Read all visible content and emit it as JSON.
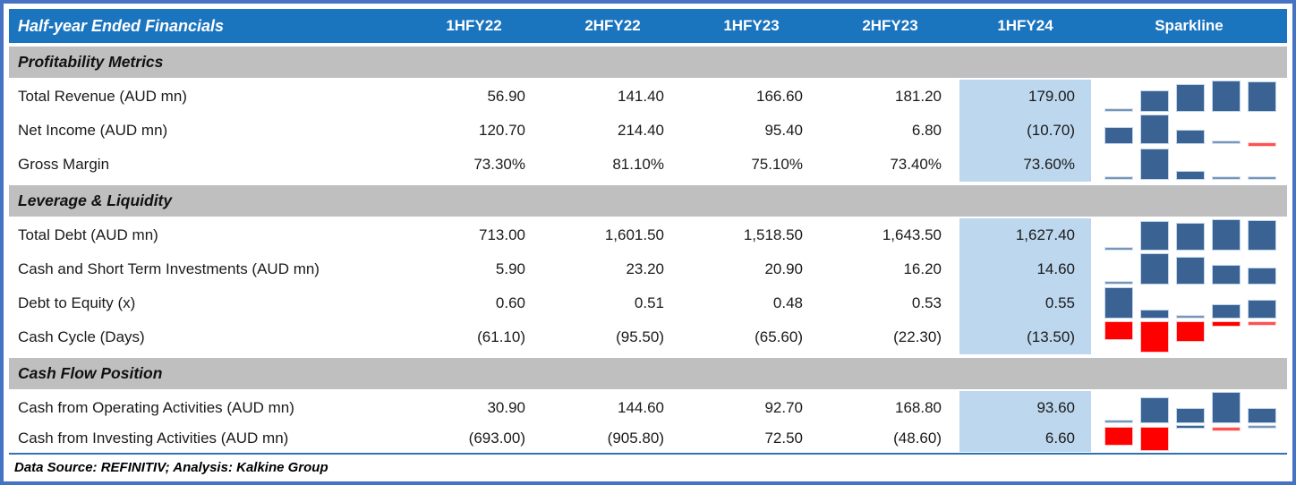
{
  "table": {
    "title": "Half-year Ended Financials",
    "columns": [
      "1HFY22",
      "2HFY22",
      "1HFY23",
      "2HFY23",
      "1HFY24"
    ],
    "sparkline_header": "Sparkline",
    "sections": [
      {
        "name": "Profitability Metrics",
        "rows": [
          {
            "label": "Total Revenue (AUD mn)",
            "values": [
              "56.90",
              "141.40",
              "166.60",
              "181.20",
              "179.00"
            ],
            "numeric": [
              56.9,
              141.4,
              166.6,
              181.2,
              179.0
            ]
          },
          {
            "label": "Net Income (AUD mn)",
            "values": [
              "120.70",
              "214.40",
              "95.40",
              "6.80",
              "(10.70)"
            ],
            "numeric": [
              120.7,
              214.4,
              95.4,
              6.8,
              -10.7
            ]
          },
          {
            "label": "Gross Margin",
            "values": [
              "73.30%",
              "81.10%",
              "75.10%",
              "73.40%",
              "73.60%"
            ],
            "numeric": [
              73.3,
              81.1,
              75.1,
              73.4,
              73.6
            ]
          }
        ]
      },
      {
        "name": "Leverage & Liquidity",
        "rows": [
          {
            "label": "Total Debt (AUD mn)",
            "values": [
              "713.00",
              "1,601.50",
              "1,518.50",
              "1,643.50",
              "1,627.40"
            ],
            "numeric": [
              713.0,
              1601.5,
              1518.5,
              1643.5,
              1627.4
            ]
          },
          {
            "label": "Cash and Short Term Investments (AUD mn)",
            "values": [
              "5.90",
              "23.20",
              "20.90",
              "16.20",
              "14.60"
            ],
            "numeric": [
              5.9,
              23.2,
              20.9,
              16.2,
              14.6
            ]
          },
          {
            "label": "Debt to Equity (x)",
            "values": [
              "0.60",
              "0.51",
              "0.48",
              "0.53",
              "0.55"
            ],
            "numeric": [
              0.6,
              0.51,
              0.48,
              0.53,
              0.55
            ]
          },
          {
            "label": "Cash Cycle (Days)",
            "values": [
              "(61.10)",
              "(95.50)",
              "(65.60)",
              "(22.30)",
              "(13.50)"
            ],
            "numeric": [
              -61.1,
              -95.5,
              -65.6,
              -22.3,
              -13.5
            ]
          }
        ]
      },
      {
        "name": "Cash Flow Position",
        "rows": [
          {
            "label": "Cash from Operating Activities (AUD mn)",
            "values": [
              "30.90",
              "144.60",
              "92.70",
              "168.80",
              "93.60"
            ],
            "numeric": [
              30.9,
              144.6,
              92.7,
              168.8,
              93.6
            ]
          },
          {
            "label": "Cash from Investing Activities (AUD mn)",
            "values": [
              "(693.00)",
              "(905.80)",
              "72.50",
              "(48.60)",
              "6.60"
            ],
            "numeric": [
              -693.0,
              -905.8,
              72.5,
              -48.6,
              6.6
            ]
          }
        ]
      }
    ],
    "footer": "Data Source: REFINITIV; Analysis: Kalkine Group"
  },
  "colors": {
    "frame": "#4472C4",
    "header_bg": "#1B74BE",
    "section_bg": "#BFBFBF",
    "highlight_col_bg": "#BDD7EE",
    "spark_pos": "#3A6292",
    "spark_neg": "#FF0000",
    "divider": "#2E75B6"
  },
  "chart_data": {
    "type": "table",
    "title": "Half-year Ended Financials",
    "categories": [
      "1HFY22",
      "2HFY22",
      "1HFY23",
      "2HFY23",
      "1HFY24"
    ],
    "series": [
      {
        "name": "Total Revenue (AUD mn)",
        "values": [
          56.9,
          141.4,
          166.6,
          181.2,
          179.0
        ]
      },
      {
        "name": "Net Income (AUD mn)",
        "values": [
          120.7,
          214.4,
          95.4,
          6.8,
          -10.7
        ]
      },
      {
        "name": "Gross Margin (%)",
        "values": [
          73.3,
          81.1,
          75.1,
          73.4,
          73.6
        ]
      },
      {
        "name": "Total Debt (AUD mn)",
        "values": [
          713.0,
          1601.5,
          1518.5,
          1643.5,
          1627.4
        ]
      },
      {
        "name": "Cash and Short Term Investments (AUD mn)",
        "values": [
          5.9,
          23.2,
          20.9,
          16.2,
          14.6
        ]
      },
      {
        "name": "Debt to Equity (x)",
        "values": [
          0.6,
          0.51,
          0.48,
          0.53,
          0.55
        ]
      },
      {
        "name": "Cash Cycle (Days)",
        "values": [
          -61.1,
          -95.5,
          -65.6,
          -22.3,
          -13.5
        ]
      },
      {
        "name": "Cash from Operating Activities (AUD mn)",
        "values": [
          30.9,
          144.6,
          92.7,
          168.8,
          93.6
        ]
      },
      {
        "name": "Cash from Investing Activities (AUD mn)",
        "values": [
          -693.0,
          -905.8,
          72.5,
          -48.6,
          6.6
        ]
      }
    ],
    "sparkline_style": "column sparkline per row, negatives shown red, current period column highlighted"
  }
}
